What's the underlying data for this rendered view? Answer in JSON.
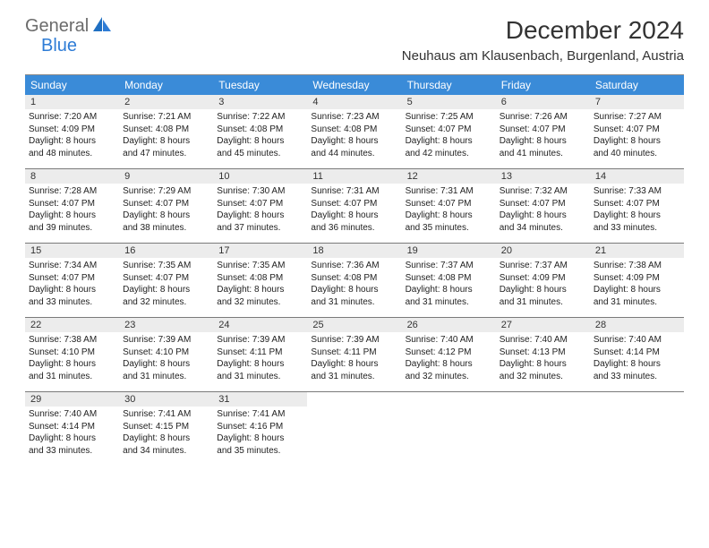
{
  "logo": {
    "text1": "General",
    "text2": "Blue"
  },
  "title": "December 2024",
  "location": "Neuhaus am Klausenbach, Burgenland, Austria",
  "colors": {
    "header_bg": "#3a8bd8",
    "header_text": "#ffffff",
    "daynum_bg": "#ececec",
    "border": "#7a7a7a",
    "title_color": "#333333",
    "logo_gray": "#6b6b6b",
    "logo_blue": "#2e7cd6"
  },
  "days_of_week": [
    "Sunday",
    "Monday",
    "Tuesday",
    "Wednesday",
    "Thursday",
    "Friday",
    "Saturday"
  ],
  "weeks": [
    [
      {
        "n": "1",
        "sr": "Sunrise: 7:20 AM",
        "ss": "Sunset: 4:09 PM",
        "d1": "Daylight: 8 hours",
        "d2": "and 48 minutes."
      },
      {
        "n": "2",
        "sr": "Sunrise: 7:21 AM",
        "ss": "Sunset: 4:08 PM",
        "d1": "Daylight: 8 hours",
        "d2": "and 47 minutes."
      },
      {
        "n": "3",
        "sr": "Sunrise: 7:22 AM",
        "ss": "Sunset: 4:08 PM",
        "d1": "Daylight: 8 hours",
        "d2": "and 45 minutes."
      },
      {
        "n": "4",
        "sr": "Sunrise: 7:23 AM",
        "ss": "Sunset: 4:08 PM",
        "d1": "Daylight: 8 hours",
        "d2": "and 44 minutes."
      },
      {
        "n": "5",
        "sr": "Sunrise: 7:25 AM",
        "ss": "Sunset: 4:07 PM",
        "d1": "Daylight: 8 hours",
        "d2": "and 42 minutes."
      },
      {
        "n": "6",
        "sr": "Sunrise: 7:26 AM",
        "ss": "Sunset: 4:07 PM",
        "d1": "Daylight: 8 hours",
        "d2": "and 41 minutes."
      },
      {
        "n": "7",
        "sr": "Sunrise: 7:27 AM",
        "ss": "Sunset: 4:07 PM",
        "d1": "Daylight: 8 hours",
        "d2": "and 40 minutes."
      }
    ],
    [
      {
        "n": "8",
        "sr": "Sunrise: 7:28 AM",
        "ss": "Sunset: 4:07 PM",
        "d1": "Daylight: 8 hours",
        "d2": "and 39 minutes."
      },
      {
        "n": "9",
        "sr": "Sunrise: 7:29 AM",
        "ss": "Sunset: 4:07 PM",
        "d1": "Daylight: 8 hours",
        "d2": "and 38 minutes."
      },
      {
        "n": "10",
        "sr": "Sunrise: 7:30 AM",
        "ss": "Sunset: 4:07 PM",
        "d1": "Daylight: 8 hours",
        "d2": "and 37 minutes."
      },
      {
        "n": "11",
        "sr": "Sunrise: 7:31 AM",
        "ss": "Sunset: 4:07 PM",
        "d1": "Daylight: 8 hours",
        "d2": "and 36 minutes."
      },
      {
        "n": "12",
        "sr": "Sunrise: 7:31 AM",
        "ss": "Sunset: 4:07 PM",
        "d1": "Daylight: 8 hours",
        "d2": "and 35 minutes."
      },
      {
        "n": "13",
        "sr": "Sunrise: 7:32 AM",
        "ss": "Sunset: 4:07 PM",
        "d1": "Daylight: 8 hours",
        "d2": "and 34 minutes."
      },
      {
        "n": "14",
        "sr": "Sunrise: 7:33 AM",
        "ss": "Sunset: 4:07 PM",
        "d1": "Daylight: 8 hours",
        "d2": "and 33 minutes."
      }
    ],
    [
      {
        "n": "15",
        "sr": "Sunrise: 7:34 AM",
        "ss": "Sunset: 4:07 PM",
        "d1": "Daylight: 8 hours",
        "d2": "and 33 minutes."
      },
      {
        "n": "16",
        "sr": "Sunrise: 7:35 AM",
        "ss": "Sunset: 4:07 PM",
        "d1": "Daylight: 8 hours",
        "d2": "and 32 minutes."
      },
      {
        "n": "17",
        "sr": "Sunrise: 7:35 AM",
        "ss": "Sunset: 4:08 PM",
        "d1": "Daylight: 8 hours",
        "d2": "and 32 minutes."
      },
      {
        "n": "18",
        "sr": "Sunrise: 7:36 AM",
        "ss": "Sunset: 4:08 PM",
        "d1": "Daylight: 8 hours",
        "d2": "and 31 minutes."
      },
      {
        "n": "19",
        "sr": "Sunrise: 7:37 AM",
        "ss": "Sunset: 4:08 PM",
        "d1": "Daylight: 8 hours",
        "d2": "and 31 minutes."
      },
      {
        "n": "20",
        "sr": "Sunrise: 7:37 AM",
        "ss": "Sunset: 4:09 PM",
        "d1": "Daylight: 8 hours",
        "d2": "and 31 minutes."
      },
      {
        "n": "21",
        "sr": "Sunrise: 7:38 AM",
        "ss": "Sunset: 4:09 PM",
        "d1": "Daylight: 8 hours",
        "d2": "and 31 minutes."
      }
    ],
    [
      {
        "n": "22",
        "sr": "Sunrise: 7:38 AM",
        "ss": "Sunset: 4:10 PM",
        "d1": "Daylight: 8 hours",
        "d2": "and 31 minutes."
      },
      {
        "n": "23",
        "sr": "Sunrise: 7:39 AM",
        "ss": "Sunset: 4:10 PM",
        "d1": "Daylight: 8 hours",
        "d2": "and 31 minutes."
      },
      {
        "n": "24",
        "sr": "Sunrise: 7:39 AM",
        "ss": "Sunset: 4:11 PM",
        "d1": "Daylight: 8 hours",
        "d2": "and 31 minutes."
      },
      {
        "n": "25",
        "sr": "Sunrise: 7:39 AM",
        "ss": "Sunset: 4:11 PM",
        "d1": "Daylight: 8 hours",
        "d2": "and 31 minutes."
      },
      {
        "n": "26",
        "sr": "Sunrise: 7:40 AM",
        "ss": "Sunset: 4:12 PM",
        "d1": "Daylight: 8 hours",
        "d2": "and 32 minutes."
      },
      {
        "n": "27",
        "sr": "Sunrise: 7:40 AM",
        "ss": "Sunset: 4:13 PM",
        "d1": "Daylight: 8 hours",
        "d2": "and 32 minutes."
      },
      {
        "n": "28",
        "sr": "Sunrise: 7:40 AM",
        "ss": "Sunset: 4:14 PM",
        "d1": "Daylight: 8 hours",
        "d2": "and 33 minutes."
      }
    ],
    [
      {
        "n": "29",
        "sr": "Sunrise: 7:40 AM",
        "ss": "Sunset: 4:14 PM",
        "d1": "Daylight: 8 hours",
        "d2": "and 33 minutes."
      },
      {
        "n": "30",
        "sr": "Sunrise: 7:41 AM",
        "ss": "Sunset: 4:15 PM",
        "d1": "Daylight: 8 hours",
        "d2": "and 34 minutes."
      },
      {
        "n": "31",
        "sr": "Sunrise: 7:41 AM",
        "ss": "Sunset: 4:16 PM",
        "d1": "Daylight: 8 hours",
        "d2": "and 35 minutes."
      },
      {
        "empty": true
      },
      {
        "empty": true
      },
      {
        "empty": true
      },
      {
        "empty": true
      }
    ]
  ]
}
